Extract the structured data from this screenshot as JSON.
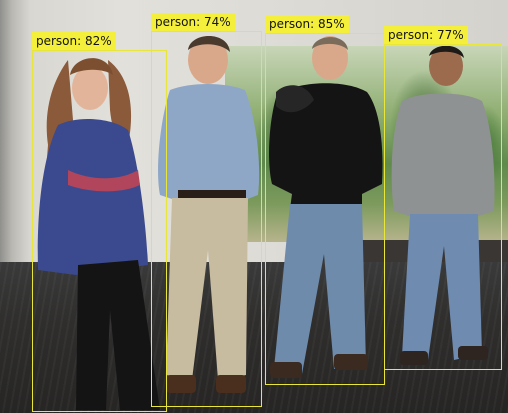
{
  "detections": [
    {
      "label": "person: 82%"
    },
    {
      "label": "person: 74%"
    },
    {
      "label": "person: 85%"
    },
    {
      "label": "person: 77%"
    }
  ],
  "colors": {
    "box": "#e8e63a",
    "label_bg": "#f4ef3b",
    "label_text": "#141414"
  }
}
